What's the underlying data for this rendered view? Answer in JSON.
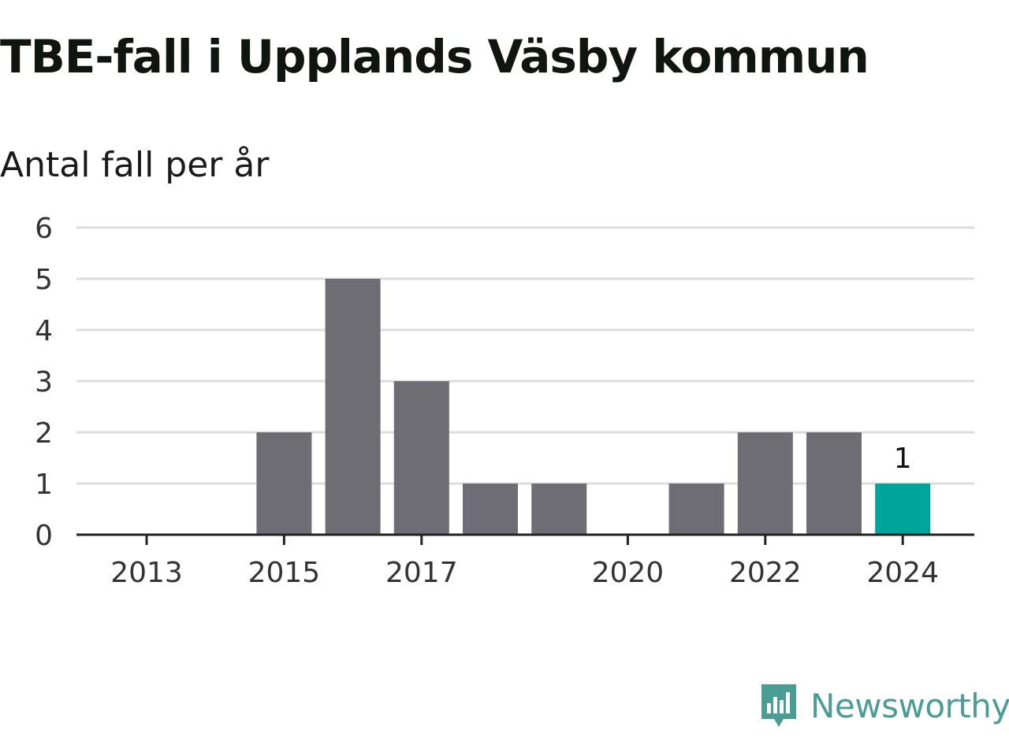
{
  "title": "TBE-fall i Upplands Väsby kommun",
  "subtitle": "Antal fall per år",
  "brand": {
    "name": "Newsworthy",
    "color": "#4a9d95",
    "icon": "newsworthy-logo-icon"
  },
  "colors": {
    "bar": "#6e6d73",
    "highlight": "#00a49a",
    "grid": "#dddddd",
    "axis": "#222222",
    "tick_text": "#333333"
  },
  "chart_data": {
    "type": "bar",
    "x": [
      2013,
      2014,
      2015,
      2016,
      2017,
      2018,
      2019,
      2020,
      2021,
      2022,
      2023,
      2024
    ],
    "values": [
      0,
      0,
      2,
      5,
      3,
      1,
      1,
      0,
      1,
      2,
      2,
      1
    ],
    "highlight_x": 2024,
    "data_labels": [
      {
        "x": 2024,
        "text": "1"
      }
    ],
    "x_ticks": [
      "2013",
      "2015",
      "2017",
      "2020",
      "2022",
      "2024"
    ],
    "y_ticks": [
      "0",
      "1",
      "2",
      "3",
      "4",
      "5",
      "6"
    ],
    "ylim": [
      0,
      6
    ],
    "xlabel": "",
    "ylabel": "",
    "grid": true
  }
}
